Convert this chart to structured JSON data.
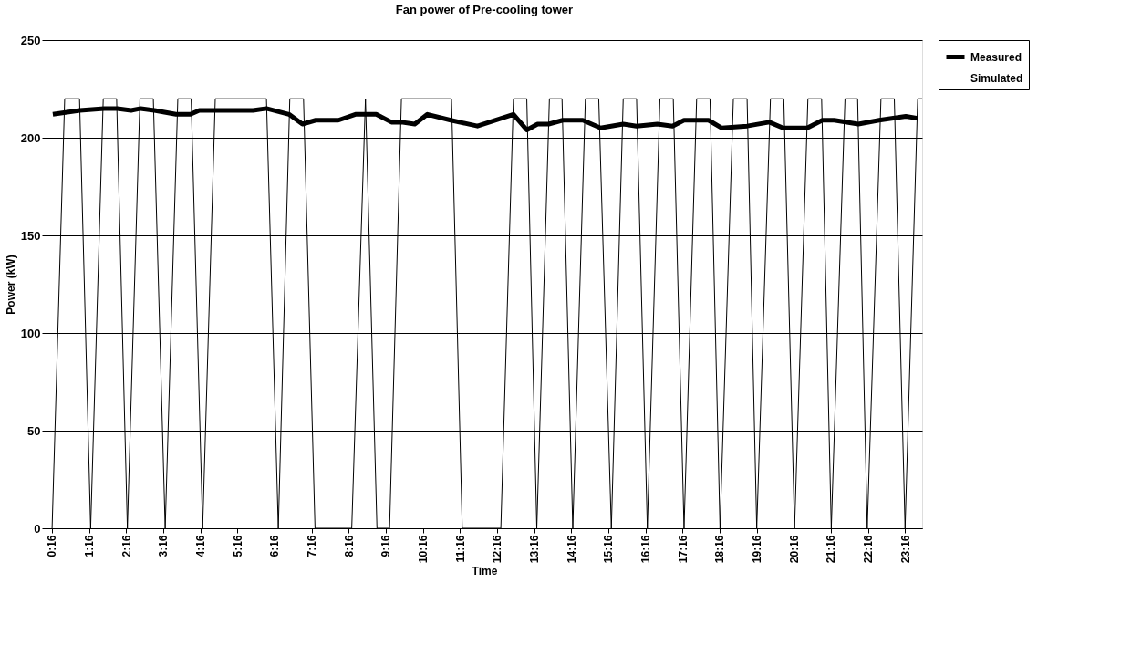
{
  "chart_data": {
    "type": "line",
    "title": "Fan power of Pre-cooling tower",
    "xlabel": "Time",
    "ylabel": "Power (kW)",
    "xlim": [
      0.12,
      23.73
    ],
    "xticks": [
      {
        "value": 0.2667,
        "label": "0:16"
      },
      {
        "value": 1.2667,
        "label": "1:16"
      },
      {
        "value": 2.2667,
        "label": "2:16"
      },
      {
        "value": 3.2667,
        "label": "3:16"
      },
      {
        "value": 4.2667,
        "label": "4:16"
      },
      {
        "value": 5.2667,
        "label": "5:16"
      },
      {
        "value": 6.2667,
        "label": "6:16"
      },
      {
        "value": 7.2667,
        "label": "7:16"
      },
      {
        "value": 8.2667,
        "label": "8:16"
      },
      {
        "value": 9.2667,
        "label": "9:16"
      },
      {
        "value": 10.2667,
        "label": "10:16"
      },
      {
        "value": 11.2667,
        "label": "11:16"
      },
      {
        "value": 12.2667,
        "label": "12:16"
      },
      {
        "value": 13.2667,
        "label": "13:16"
      },
      {
        "value": 14.2667,
        "label": "14:16"
      },
      {
        "value": 15.2667,
        "label": "15:16"
      },
      {
        "value": 16.2667,
        "label": "16:16"
      },
      {
        "value": 17.2667,
        "label": "17:16"
      },
      {
        "value": 18.2667,
        "label": "18:16"
      },
      {
        "value": 19.2667,
        "label": "19:16"
      },
      {
        "value": 20.2667,
        "label": "20:16"
      },
      {
        "value": 21.2667,
        "label": "21:16"
      },
      {
        "value": 22.2667,
        "label": "22:16"
      },
      {
        "value": 23.2667,
        "label": "23:16"
      }
    ],
    "ylim": [
      0,
      250
    ],
    "yticks": [
      0,
      50,
      100,
      150,
      200,
      250
    ],
    "grid": "y",
    "legend": "right",
    "line_style": "solid",
    "marker": "none",
    "series": [
      {
        "name": "Measured",
        "color": "#000000",
        "x": [
          0.29,
          1.02,
          1.67,
          2.03,
          2.4,
          2.66,
          3.03,
          3.61,
          4.0,
          4.24,
          5.69,
          6.05,
          6.66,
          7.02,
          7.38,
          7.99,
          8.45,
          9.01,
          9.42,
          9.69,
          10.05,
          10.39,
          11.02,
          11.74,
          12.71,
          13.07,
          13.36,
          13.66,
          14.04,
          14.58,
          15.06,
          15.67,
          16.03,
          16.59,
          17.0,
          17.31,
          17.97,
          18.33,
          19.01,
          19.61,
          19.98,
          20.63,
          21.04,
          21.36,
          22.01,
          22.57,
          23.29,
          23.61
        ],
        "values": [
          212,
          214,
          215,
          215,
          214,
          215,
          214,
          212,
          212,
          214,
          214,
          215,
          212,
          207,
          209,
          209,
          212,
          212,
          208,
          208,
          207,
          212,
          209,
          206,
          212,
          204,
          207,
          207,
          209,
          209,
          205,
          207,
          206,
          207,
          206,
          209,
          209,
          205,
          206,
          208,
          205,
          205,
          209,
          209,
          207,
          209,
          211,
          210
        ]
      },
      {
        "name": "Simulated",
        "color": "#000000",
        "x": [
          0.27,
          0.61,
          1.01,
          1.31,
          1.65,
          2.01,
          2.3,
          2.64,
          3.0,
          3.32,
          3.66,
          4.02,
          4.33,
          4.67,
          6.05,
          6.37,
          6.68,
          7.05,
          7.36,
          8.35,
          8.72,
          9.03,
          9.37,
          9.69,
          11.04,
          11.33,
          12.37,
          12.71,
          13.07,
          13.34,
          13.68,
          14.02,
          14.31,
          14.65,
          15.01,
          15.35,
          15.67,
          16.03,
          16.32,
          16.66,
          17.02,
          17.31,
          17.65,
          18.01,
          18.28,
          18.64,
          19.01,
          19.27,
          19.64,
          20.0,
          20.29,
          20.65,
          21.02,
          21.28,
          21.65,
          21.99,
          22.25,
          22.62,
          22.98,
          23.27,
          23.61,
          23.73
        ],
        "values": [
          0,
          220,
          220,
          0,
          220,
          220,
          0,
          220,
          220,
          0,
          220,
          220,
          0,
          220,
          220,
          0,
          220,
          220,
          0,
          0,
          220,
          0,
          0,
          220,
          220,
          0,
          0,
          220,
          220,
          0,
          220,
          220,
          0,
          220,
          220,
          0,
          220,
          220,
          0,
          220,
          220,
          0,
          220,
          220,
          0,
          220,
          220,
          0,
          220,
          220,
          0,
          220,
          220,
          0,
          220,
          220,
          0,
          220,
          220,
          0,
          220,
          220
        ]
      }
    ]
  }
}
